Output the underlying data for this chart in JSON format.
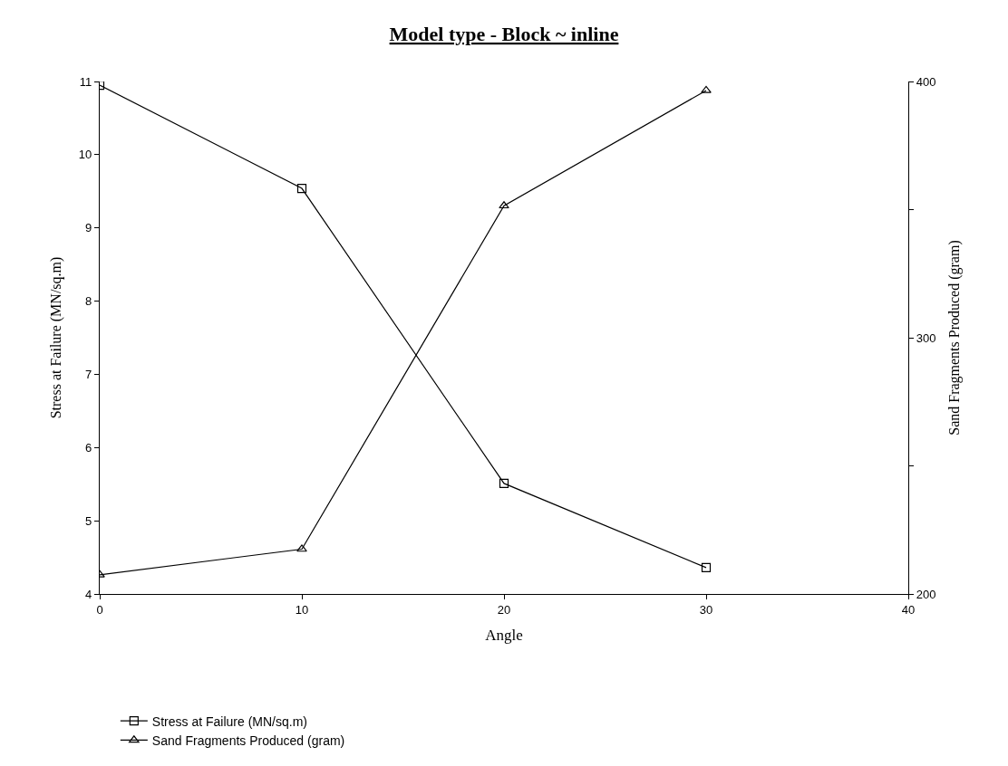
{
  "chart_data": {
    "type": "line",
    "title": "Model type - Block ~ inline",
    "xlabel": "Angle",
    "ylabel": "Stress at Failure (MN/sq.m)",
    "y2label": "Sand Fragments Produced (gram)",
    "x": [
      0,
      10,
      20,
      30
    ],
    "series": [
      {
        "name": "Stress at Failure (MN/sq.m)",
        "color": "#000000",
        "marker": "square",
        "values": [
          10.95,
          9.54,
          5.51,
          4.36
        ]
      },
      {
        "name": "Sand Fragments Produced (gram)",
        "color": "#000000",
        "marker": "triangle",
        "axis": "y2",
        "values": [
          207.5,
          217.5,
          351.5,
          396.5
        ]
      }
    ],
    "xlim": [
      0,
      40
    ],
    "xticks": [
      0,
      10,
      20,
      30,
      40
    ],
    "ylim": [
      4,
      11
    ],
    "yticks": [
      4,
      5,
      6,
      7,
      8,
      9,
      10,
      11
    ],
    "y2lim": [
      200,
      400
    ],
    "y2ticks": [
      200,
      {
        "value": 250,
        "label": null
      },
      300,
      {
        "value": 350,
        "label": null
      },
      400
    ],
    "line_style": "solid",
    "legend": "bottom"
  }
}
